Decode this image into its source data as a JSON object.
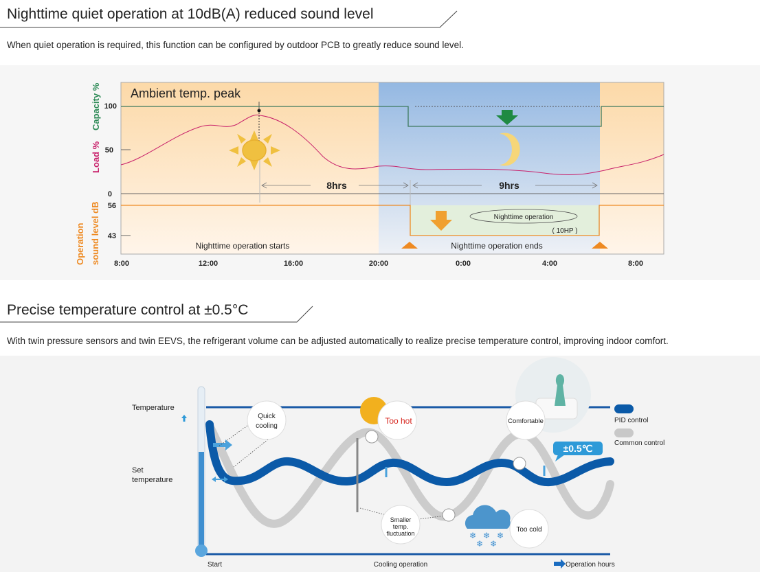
{
  "section1": {
    "title": "Nighttime quiet operation at 10dB(A) reduced sound level",
    "description": "When quiet operation is required, this function can be configured by outdoor PCB to greatly reduce sound level.",
    "diagram": {
      "annotation_peak": "Ambient temp. peak",
      "axis_capacity": "Capacity %",
      "axis_load": "Load %",
      "axis_sound_1": "Operation",
      "axis_sound_2": "sound level dB",
      "y_ticks_upper": [
        "100",
        "50",
        "0"
      ],
      "y_ticks_lower": [
        "56",
        "43"
      ],
      "x_ticks": [
        "8:00",
        "12:00",
        "16:00",
        "20:00",
        "0:00",
        "4:00",
        "8:00"
      ],
      "span_day": "8hrs",
      "span_night": "9hrs",
      "night_mode_label": "Nighttime operation",
      "night_mode_capacity": "( 10HP )",
      "starts_label": "Nighttime operation starts",
      "ends_label": "Nighttime operation ends",
      "colors": {
        "capacity": "#2e8b57",
        "load": "#c8206a",
        "sound": "#ee8a22",
        "day": "#fde3bd",
        "night": "#9bbce3"
      }
    }
  },
  "section2": {
    "title": "Precise temperature control at ±0.5°C",
    "description": "With twin pressure sensors and twin EEVS, the refrigerant volume can be adjusted automatically to realize precise temperature control, improving indoor comfort.",
    "diagram": {
      "y_label_top": "Temperature",
      "y_label_set_1": "Set",
      "y_label_set_2": "temperature",
      "bubble_quick_1": "Quick",
      "bubble_quick_2": "cooling",
      "bubble_hot": "Too hot",
      "bubble_comfortable": "Comfortable",
      "bubble_smaller_1": "Smaller",
      "bubble_smaller_2": "temp.",
      "bubble_smaller_3": "fluctuation",
      "bubble_cold": "Too cold",
      "badge_precision": "±0.5℃",
      "legend_pid": "PID control",
      "legend_common": "Common control",
      "x_start": "Start",
      "x_middle": "Cooling operation",
      "x_end": "Operation hours",
      "colors": {
        "pid": "#0b5aa8",
        "common": "#c8c8c8",
        "accent": "#2e9ad8",
        "hot": "#d7261e"
      }
    }
  }
}
